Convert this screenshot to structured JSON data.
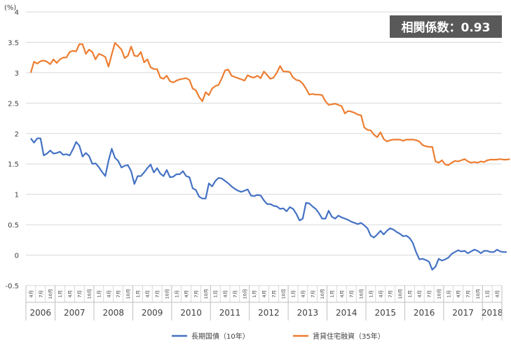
{
  "chart_data": {
    "type": "line",
    "unit_label": "(%)",
    "badge": "相関係数：0.93",
    "ylim": [
      -0.5,
      4
    ],
    "yticks": [
      "4",
      "3.5",
      "3",
      "2.5",
      "2",
      "1.5",
      "1",
      "0.5",
      "0",
      "-0.5"
    ],
    "ytick_values": [
      4,
      3.5,
      3,
      2.5,
      2,
      1.5,
      1,
      0.5,
      0,
      -0.5
    ],
    "grid": true,
    "legend_position": "bottom",
    "month_tick_labels": [
      "4月",
      "7月",
      "10月",
      "1月",
      "4月",
      "7月",
      "10月",
      "1月",
      "4月",
      "7月",
      "10月",
      "1月",
      "4月",
      "7月",
      "10月",
      "1月",
      "4月",
      "7月",
      "10月",
      "1月",
      "4月",
      "7月",
      "10月",
      "1月",
      "4月",
      "7月",
      "10月",
      "1月",
      "4月",
      "7月",
      "10月",
      "1月",
      "4月",
      "7月",
      "10月",
      "1月",
      "4月",
      "7月",
      "10月",
      "1月",
      "4月",
      "7月",
      "10月",
      "1月",
      "4月",
      "7月",
      "10月",
      "1月",
      "4月"
    ],
    "years": [
      "2006",
      "2007",
      "2008",
      "2009",
      "2010",
      "2011",
      "2012",
      "2013",
      "2014",
      "2015",
      "2016",
      "2017",
      "2018"
    ],
    "x_start": "2006-04",
    "x_end": "2018-04",
    "series": [
      {
        "name": "長期国債（10年）",
        "color": "#4472C4",
        "values": [
          1.92,
          1.85,
          1.92,
          1.92,
          1.64,
          1.67,
          1.72,
          1.67,
          1.68,
          1.7,
          1.65,
          1.66,
          1.64,
          1.74,
          1.86,
          1.8,
          1.62,
          1.68,
          1.63,
          1.5,
          1.51,
          1.45,
          1.37,
          1.3,
          1.55,
          1.75,
          1.6,
          1.55,
          1.44,
          1.47,
          1.48,
          1.38,
          1.17,
          1.3,
          1.3,
          1.36,
          1.43,
          1.49,
          1.36,
          1.43,
          1.34,
          1.3,
          1.4,
          1.28,
          1.29,
          1.33,
          1.33,
          1.38,
          1.3,
          1.28,
          1.1,
          1.07,
          0.96,
          0.93,
          0.93,
          1.18,
          1.13,
          1.22,
          1.27,
          1.26,
          1.22,
          1.18,
          1.13,
          1.09,
          1.06,
          1.04,
          1.06,
          1.08,
          0.98,
          0.97,
          0.99,
          0.98,
          0.9,
          0.84,
          0.84,
          0.81,
          0.8,
          0.76,
          0.77,
          0.72,
          0.79,
          0.76,
          0.68,
          0.57,
          0.6,
          0.86,
          0.85,
          0.8,
          0.76,
          0.69,
          0.6,
          0.6,
          0.73,
          0.63,
          0.6,
          0.65,
          0.62,
          0.6,
          0.58,
          0.55,
          0.53,
          0.51,
          0.53,
          0.49,
          0.44,
          0.32,
          0.29,
          0.34,
          0.4,
          0.34,
          0.4,
          0.44,
          0.42,
          0.38,
          0.35,
          0.31,
          0.32,
          0.28,
          0.2,
          0.05,
          -0.07,
          -0.06,
          -0.08,
          -0.11,
          -0.24,
          -0.19,
          -0.06,
          -0.09,
          -0.07,
          -0.04,
          0.02,
          0.05,
          0.08,
          0.06,
          0.07,
          0.03,
          0.06,
          0.09,
          0.07,
          0.03,
          0.07,
          0.07,
          0.05,
          0.05,
          0.09,
          0.06,
          0.05,
          0.05
        ]
      },
      {
        "name": "賃貸住宅融資（35年）",
        "color": "#ED7D31",
        "values": [
          3.0,
          3.18,
          3.15,
          3.19,
          3.2,
          3.18,
          3.14,
          3.22,
          3.16,
          3.22,
          3.25,
          3.25,
          3.34,
          3.36,
          3.35,
          3.47,
          3.47,
          3.31,
          3.38,
          3.34,
          3.22,
          3.31,
          3.29,
          3.26,
          3.1,
          3.3,
          3.49,
          3.44,
          3.38,
          3.24,
          3.28,
          3.43,
          3.28,
          3.27,
          3.34,
          3.17,
          3.22,
          3.09,
          3.06,
          3.06,
          2.92,
          2.9,
          2.95,
          2.86,
          2.84,
          2.87,
          2.89,
          2.9,
          2.91,
          2.88,
          2.74,
          2.71,
          2.6,
          2.53,
          2.68,
          2.63,
          2.74,
          2.78,
          2.8,
          2.91,
          3.04,
          3.05,
          2.95,
          2.93,
          2.91,
          2.89,
          2.87,
          2.96,
          2.93,
          2.92,
          2.95,
          2.91,
          3.02,
          2.96,
          2.9,
          2.92,
          3.0,
          3.11,
          3.02,
          3.02,
          3.01,
          2.92,
          2.88,
          2.87,
          2.82,
          2.74,
          2.64,
          2.65,
          2.64,
          2.64,
          2.63,
          2.53,
          2.47,
          2.48,
          2.49,
          2.47,
          2.45,
          2.33,
          2.37,
          2.36,
          2.34,
          2.31,
          2.3,
          2.1,
          2.06,
          2.05,
          1.98,
          1.94,
          2.02,
          1.91,
          1.87,
          1.89,
          1.9,
          1.9,
          1.9,
          1.88,
          1.9,
          1.9,
          1.9,
          1.89,
          1.87,
          1.81,
          1.79,
          1.78,
          1.78,
          1.54,
          1.52,
          1.56,
          1.49,
          1.48,
          1.52,
          1.55,
          1.54,
          1.56,
          1.58,
          1.54,
          1.52,
          1.53,
          1.52,
          1.54,
          1.53,
          1.56,
          1.57,
          1.57,
          1.57,
          1.58,
          1.57,
          1.57,
          1.58
        ]
      }
    ]
  }
}
